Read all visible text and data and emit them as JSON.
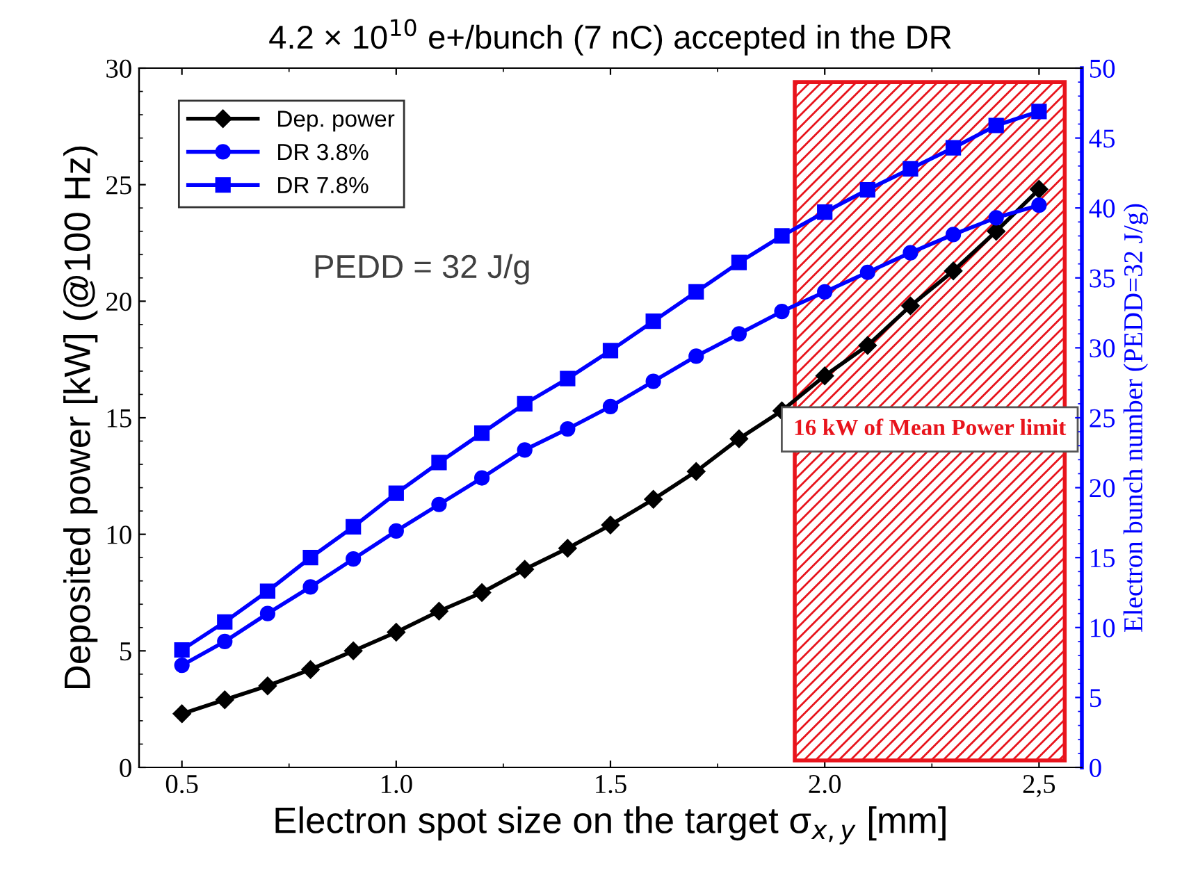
{
  "chart_data": {
    "type": "line",
    "title": "4.2 × 10$^{10}$ e+/bunch (7 nC) accepted in the DR",
    "xlabel": "Electron spot size on the target σ$_{x,y}$ [mm]",
    "ylabel": "Deposited power [kW] (@100 Hz)",
    "y2label": "Electron bunch number (PEDD=32 J/g)",
    "x": [
      0.5,
      0.6,
      0.7,
      0.8,
      0.9,
      1.0,
      1.1,
      1.2,
      1.3,
      1.4,
      1.5,
      1.6,
      1.7,
      1.8,
      1.9,
      2.0,
      2.1,
      2.2,
      2.3,
      2.4,
      2.5
    ],
    "series": [
      {
        "name": "Dep. power",
        "color": "#000000",
        "marker": "diamond",
        "values": [
          2.3,
          2.9,
          3.5,
          4.2,
          5.0,
          5.8,
          6.7,
          7.5,
          8.5,
          9.4,
          10.4,
          11.5,
          12.7,
          14.1,
          15.3,
          16.8,
          18.1,
          19.8,
          21.3,
          23.0,
          24.8
        ]
      },
      {
        "name": "DR 3.8%",
        "color": "#0000ff",
        "marker": "circle",
        "axis": "y2",
        "values": [
          7.3,
          9.0,
          11.0,
          12.9,
          14.9,
          16.9,
          18.8,
          20.7,
          22.7,
          24.2,
          25.8,
          27.6,
          29.4,
          31.0,
          32.6,
          34.0,
          35.4,
          36.8,
          38.1,
          39.3,
          40.2
        ]
      },
      {
        "name": "DR 7.8%",
        "color": "#0000ff",
        "marker": "square",
        "axis": "y2",
        "values": [
          8.4,
          10.4,
          12.6,
          15.0,
          17.2,
          19.6,
          21.8,
          23.9,
          26.0,
          27.8,
          29.8,
          31.9,
          34.0,
          36.1,
          38.0,
          39.7,
          41.3,
          42.8,
          44.3,
          45.9,
          46.9
        ]
      }
    ],
    "xlim": [
      0.4,
      2.6
    ],
    "xticks": [
      {
        "value": 0.5,
        "label": "0.5"
      },
      {
        "value": 1.0,
        "label": "1.0"
      },
      {
        "value": 1.5,
        "label": "1.5"
      },
      {
        "value": 2.0,
        "label": "2.0"
      },
      {
        "value": 2.5,
        "label": "2,5"
      }
    ],
    "ylim": [
      0,
      30
    ],
    "yticks": [
      0,
      5,
      10,
      15,
      20,
      25,
      30
    ],
    "y2lim": [
      0,
      50
    ],
    "y2ticks": [
      0,
      5,
      10,
      15,
      20,
      25,
      30,
      35,
      40,
      45,
      50
    ],
    "bands": [
      {
        "axis": "x",
        "from": 1.93,
        "to": 2.56,
        "label": "16 kW of Mean Power limit",
        "color": "#e8141c"
      }
    ],
    "annotations": [
      "PEDD = 32 J/g"
    ],
    "legend": "top left",
    "grid": false,
    "line_style": "solid"
  }
}
